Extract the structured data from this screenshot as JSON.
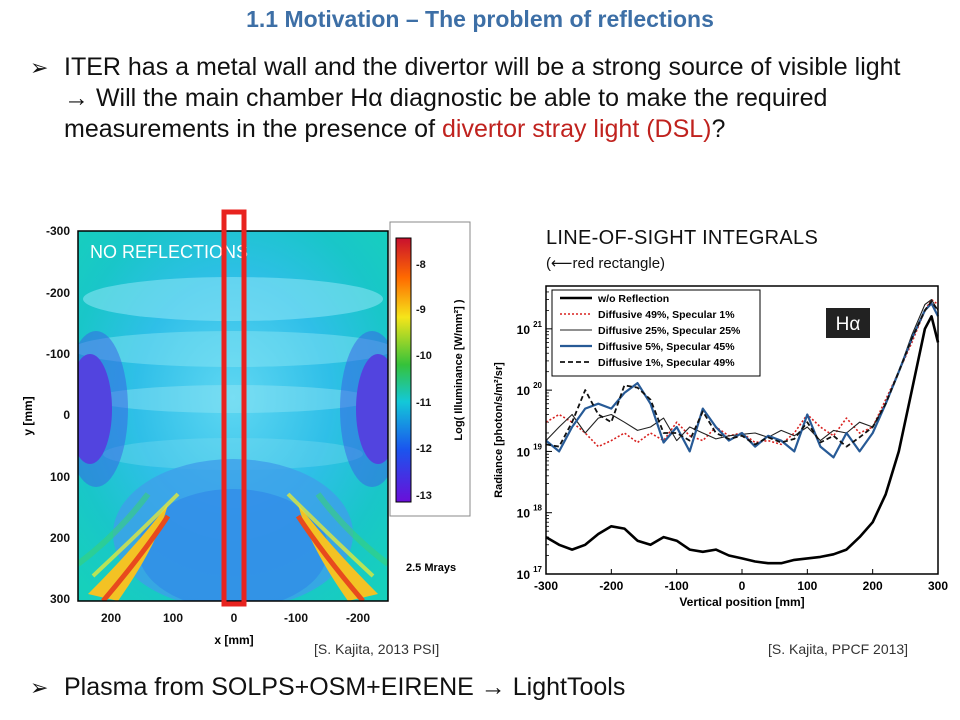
{
  "title": "1.1 Motivation – The problem of reflections",
  "bullets": {
    "marker": "➢",
    "b1_part1": "ITER has a metal wall and the divertor will be a strong source of visible light → Will the main chamber Hα diagnostic be able to make the required measurements in the presence of ",
    "b1_red": "divertor stray light (DSL)",
    "b1_end": "?",
    "b2": "Plasma from SOLPS+OSM+EIRENE → LightTools"
  },
  "left_figure": {
    "overlay_label": "NO REFLECTIONS",
    "y_axis_label": "y [mm]",
    "x_axis_label": "x [mm]",
    "y_ticks": [
      "-300",
      "-200",
      "-100",
      "0",
      "100",
      "200",
      "300"
    ],
    "x_ticks": [
      "200",
      "100",
      "0",
      "-100",
      "-200"
    ],
    "colorbar_label": "Log( Illuminance [W/mm²] )",
    "colorbar_ticks": [
      "-8",
      "-9",
      "-10",
      "-11",
      "-12",
      "-13"
    ],
    "rays_note": "2.5 Mrays",
    "citation": "[S. Kajita, 2013 PSI]",
    "highlight_color": "#e8231f"
  },
  "right_figure": {
    "title": "LINE-OF-SIGHT  INTEGRALS",
    "subtitle": "(⟵red rectangle)",
    "citation": "[S. Kajita, PPCF 2013]"
  },
  "chart_data": {
    "type": "line",
    "title": "",
    "xlabel": "Vertical position [mm]",
    "ylabel": "Radiance [photon/s/m²/sr]",
    "xlim": [
      -300,
      300
    ],
    "ylim": [
      1e+17,
      5e+21
    ],
    "log_y": true,
    "x_ticks": [
      -300,
      -200,
      -100,
      0,
      100,
      200,
      300
    ],
    "y_ticks": [
      1e+17,
      1e+18,
      1e+19,
      1e+20,
      1e+21
    ],
    "y_tick_labels": [
      "10",
      "10",
      "10",
      "10",
      "10"
    ],
    "y_tick_exponents": [
      "17",
      "18",
      "19",
      "20",
      "21"
    ],
    "annotation": "Hα",
    "legend_position": "top-left",
    "x": [
      -300,
      -280,
      -260,
      -240,
      -220,
      -200,
      -180,
      -160,
      -140,
      -120,
      -100,
      -80,
      -60,
      -40,
      -20,
      0,
      20,
      40,
      60,
      80,
      100,
      120,
      140,
      160,
      180,
      200,
      220,
      240,
      260,
      280,
      290,
      300
    ],
    "series": [
      {
        "name": "w/o Reflection",
        "color": "#000000",
        "dash": "",
        "width": 2.6,
        "values": [
          4e+17,
          3e+17,
          2.5e+17,
          3e+17,
          4.5e+17,
          6e+17,
          5.5e+17,
          3.5e+17,
          3e+17,
          4e+17,
          3.5e+17,
          2.5e+17,
          2.3e+17,
          2.5e+17,
          2e+17,
          1.8e+17,
          1.6e+17,
          1.5e+17,
          1.5e+17,
          1.7e+17,
          1.8e+17,
          1.9e+17,
          2.1e+17,
          2.5e+17,
          4e+17,
          7e+17,
          2e+18,
          1e+19,
          1e+20,
          1e+21,
          1.6e+21,
          6e+20
        ]
      },
      {
        "name": "Diffusive 49%, Specular 1%",
        "color": "#d8211f",
        "dash": "2,2",
        "width": 1.6,
        "values": [
          3e+19,
          4e+19,
          3e+19,
          2e+19,
          1.2e+19,
          1.5e+19,
          2e+19,
          1.4e+19,
          2e+19,
          1.5e+19,
          3e+19,
          1.8e+19,
          1.5e+19,
          2.5e+19,
          1.8e+19,
          2e+19,
          1.4e+19,
          1.5e+19,
          1.3e+19,
          2e+19,
          4e+19,
          2.5e+19,
          1.8e+19,
          3.5e+19,
          2e+19,
          2.5e+19,
          7e+19,
          2e+20,
          6e+20,
          2e+21,
          3e+21,
          2.5e+21
        ]
      },
      {
        "name": "Diffusive 25%, Specular 25%",
        "color": "#222222",
        "dash": "",
        "width": 1.1,
        "values": [
          1.5e+19,
          2.5e+19,
          4e+19,
          2e+19,
          3.5e+19,
          4e+19,
          3e+19,
          2.2e+19,
          2.5e+19,
          3.5e+19,
          1.5e+19,
          2.5e+19,
          2e+19,
          1.6e+19,
          1.8e+19,
          1.9e+19,
          2e+19,
          1.7e+19,
          2.2e+19,
          1.8e+19,
          2.5e+19,
          1.5e+19,
          2.2e+19,
          2e+19,
          3e+19,
          2.5e+19,
          6e+19,
          2e+20,
          8e+20,
          2.5e+21,
          3e+21,
          2e+21
        ]
      },
      {
        "name": "Diffusive 5%, Specular 45%",
        "color": "#275a96",
        "dash": "",
        "width": 2.2,
        "values": [
          1.5e+19,
          1e+19,
          2.5e+19,
          5e+19,
          6e+19,
          5e+19,
          9e+19,
          1.3e+20,
          6e+19,
          1.4e+19,
          2.5e+19,
          1e+19,
          5e+19,
          2.5e+19,
          1.5e+19,
          2e+19,
          1.2e+19,
          1.8e+19,
          1.5e+19,
          1e+19,
          4e+19,
          1.2e+19,
          8e+18,
          2e+19,
          1e+19,
          2e+19,
          6e+19,
          2e+20,
          7e+20,
          2e+21,
          2.6e+21,
          1.6e+21
        ]
      },
      {
        "name": "Diffusive 1%, Specular 49%",
        "color": "#111111",
        "dash": "5,3",
        "width": 1.8,
        "values": [
          1.3e+19,
          1.2e+19,
          3e+19,
          1e+20,
          4e+19,
          3e+19,
          1.2e+20,
          1.1e+20,
          7e+19,
          2e+19,
          2e+19,
          1.5e+19,
          4.5e+19,
          2e+19,
          1.6e+19,
          1.8e+19,
          1.3e+19,
          1.7e+19,
          1.4e+19,
          1.6e+19,
          3e+19,
          1.4e+19,
          1.8e+19,
          1.2e+19,
          1.7e+19,
          2.5e+19,
          6e+19,
          2e+20,
          7e+20,
          2e+21,
          2.8e+21,
          2e+21
        ]
      }
    ]
  }
}
